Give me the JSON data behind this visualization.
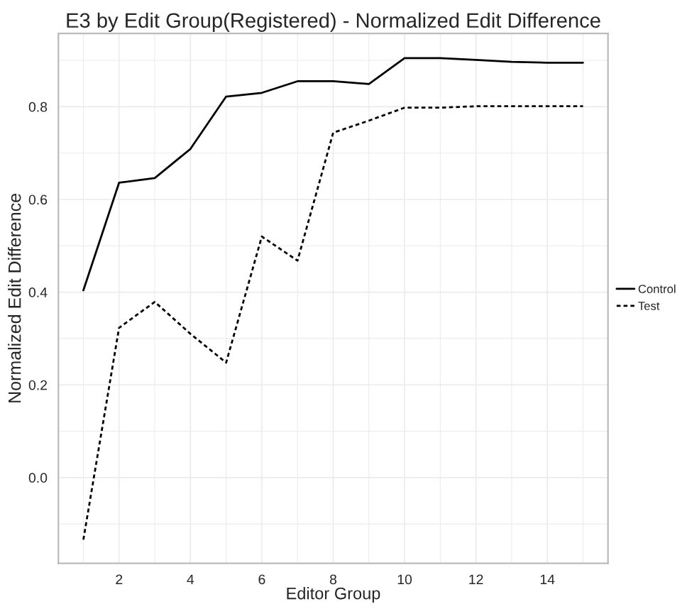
{
  "chart_data": {
    "type": "line",
    "title": "E3 by Edit Group(Registered) - Normalized Edit Difference",
    "xlabel": "Editor Group",
    "ylabel": "Normalized Edit Difference",
    "x": [
      1,
      2,
      3,
      4,
      5,
      6,
      7,
      8,
      9,
      10,
      11,
      12,
      13,
      14,
      15
    ],
    "series": [
      {
        "name": "Control",
        "color": "#000000",
        "line_style": "solid",
        "values": [
          0.404,
          0.636,
          0.646,
          0.709,
          0.822,
          0.83,
          0.855,
          0.855,
          0.849,
          0.905,
          0.905,
          0.901,
          0.897,
          0.895,
          0.895
        ]
      },
      {
        "name": "Test",
        "color": "#000000",
        "line_style": "dotted",
        "values": [
          -0.134,
          0.323,
          0.379,
          0.31,
          0.248,
          0.52,
          0.468,
          0.744,
          0.77,
          0.798,
          0.798,
          0.801,
          0.801,
          0.801,
          0.801
        ]
      }
    ],
    "xlim": [
      0.3,
      15.7
    ],
    "ylim": [
      -0.185,
      0.958
    ],
    "xticks": [
      2,
      4,
      6,
      8,
      10,
      12,
      14
    ],
    "yticks": [
      {
        "value": 0.0,
        "label": "0.0"
      },
      {
        "value": 0.2,
        "label": "0.2"
      },
      {
        "value": 0.4,
        "label": "0.4"
      },
      {
        "value": 0.6,
        "label": "0.6"
      },
      {
        "value": 0.8,
        "label": "0.8"
      }
    ],
    "grid": true,
    "legend": "right"
  }
}
